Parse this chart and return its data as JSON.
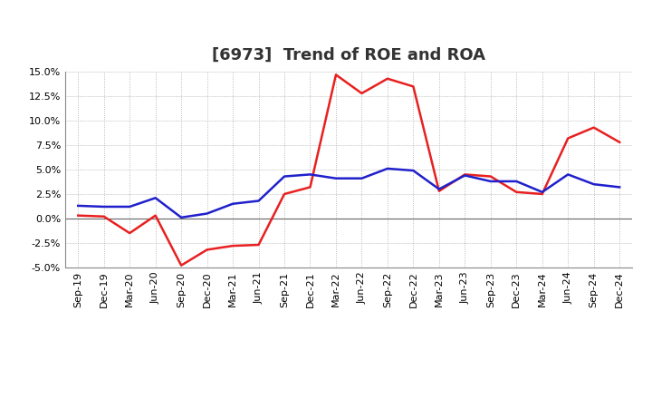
{
  "title": "[6973]  Trend of ROE and ROA",
  "x_labels": [
    "Sep-19",
    "Dec-19",
    "Mar-20",
    "Jun-20",
    "Sep-20",
    "Dec-20",
    "Mar-21",
    "Jun-21",
    "Sep-21",
    "Dec-21",
    "Mar-22",
    "Jun-22",
    "Sep-22",
    "Dec-22",
    "Mar-23",
    "Jun-23",
    "Sep-23",
    "Dec-23",
    "Mar-24",
    "Jun-24",
    "Sep-24",
    "Dec-24"
  ],
  "roe": [
    0.3,
    0.2,
    -1.5,
    0.3,
    -4.8,
    -3.2,
    -2.8,
    -2.7,
    2.5,
    3.2,
    14.7,
    12.8,
    14.3,
    13.5,
    2.8,
    4.5,
    4.3,
    2.7,
    2.5,
    8.2,
    9.3,
    7.8
  ],
  "roa": [
    1.3,
    1.2,
    1.2,
    2.1,
    0.1,
    0.5,
    1.5,
    1.8,
    4.3,
    4.5,
    4.1,
    4.1,
    5.1,
    4.9,
    3.0,
    4.4,
    3.8,
    3.8,
    2.7,
    4.5,
    3.5,
    3.2
  ],
  "roe_color": "#e82020",
  "roa_color": "#2020cc",
  "ylim": [
    -5.0,
    15.0
  ],
  "yticks": [
    -5.0,
    -2.5,
    0.0,
    2.5,
    5.0,
    7.5,
    10.0,
    12.5,
    15.0
  ],
  "background_color": "#ffffff",
  "plot_bg_color": "#ffffff",
  "grid_color": "#aaaaaa",
  "title_fontsize": 13,
  "axis_fontsize": 8,
  "legend_fontsize": 10,
  "linewidth": 1.8
}
